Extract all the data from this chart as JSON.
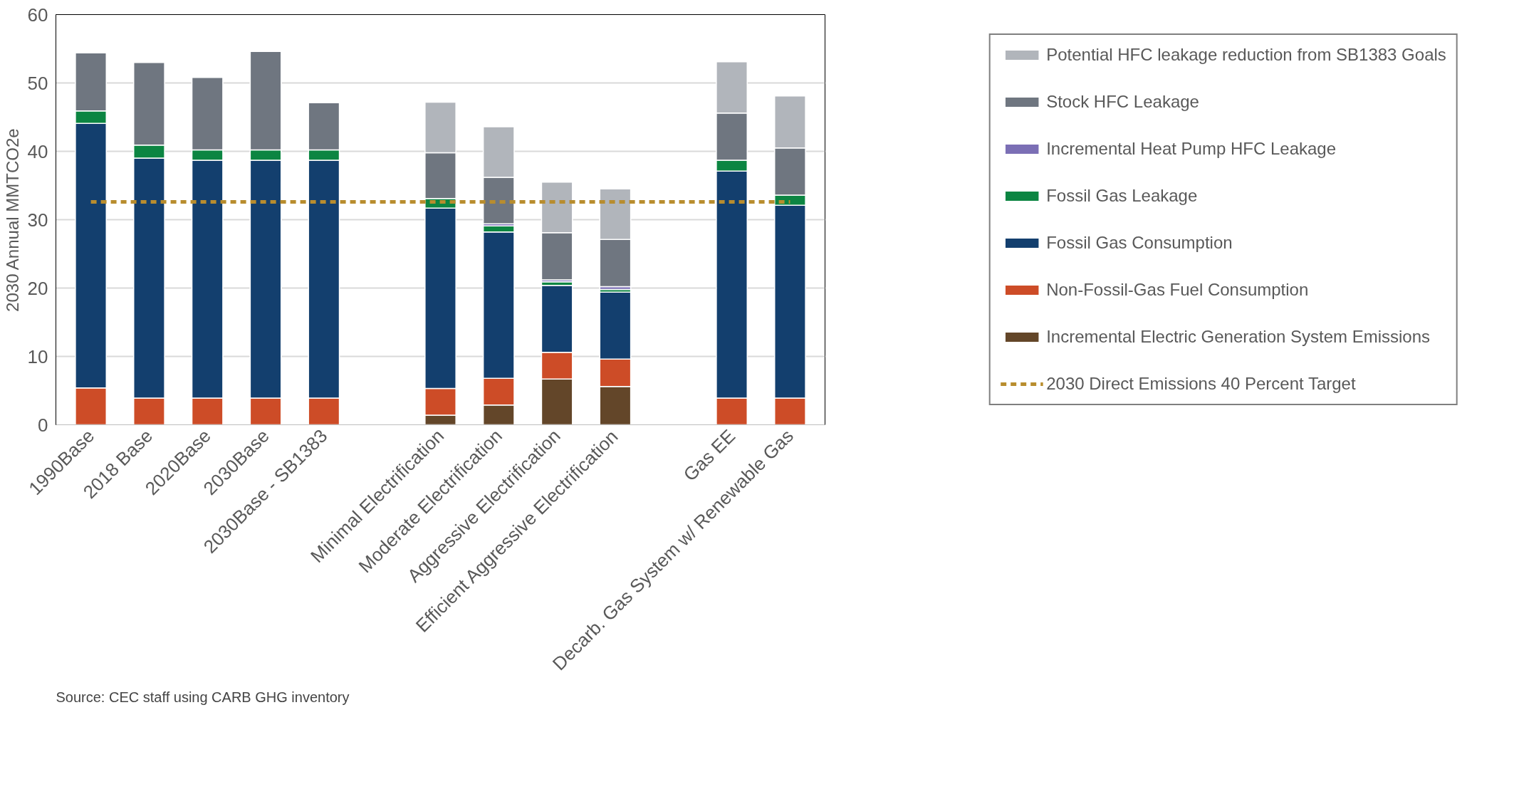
{
  "chart_data": {
    "type": "bar",
    "stacked": true,
    "ylabel": "2030 Annual MMTCO2e",
    "categories": [
      "1990Base",
      "2018 Base",
      "2020Base",
      "2030Base",
      "2030Base - SB1383",
      null,
      "Minimal Electrification",
      "Moderate Electrification",
      "Aggressive Electrification",
      "Efficient Aggressive Electrification",
      null,
      "Gas EE",
      "Decarb. Gas System w/ Renewable Gas"
    ],
    "series": [
      {
        "name": "Incremental Electric Generation System Emissions",
        "color": "#634629",
        "values": [
          null,
          null,
          null,
          null,
          null,
          null,
          1.4,
          2.9,
          6.7,
          5.6,
          null,
          null,
          null
        ]
      },
      {
        "name": "Non-Fossil-Gas Fuel Consumption",
        "color": "#cd4c27",
        "values": [
          5.4,
          3.9,
          3.9,
          3.9,
          3.9,
          null,
          3.9,
          3.9,
          3.9,
          4.0,
          null,
          3.9,
          3.9
        ]
      },
      {
        "name": "Fossil Gas Consumption",
        "color": "#133f6e",
        "values": [
          38.7,
          35.1,
          34.8,
          34.8,
          34.8,
          null,
          26.4,
          21.4,
          9.8,
          9.8,
          null,
          33.2,
          28.2
        ]
      },
      {
        "name": "Fossil Gas Leakage",
        "color": "#0c8542",
        "values": [
          1.8,
          1.9,
          1.5,
          1.5,
          1.5,
          null,
          1.4,
          0.9,
          0.5,
          0.4,
          null,
          1.6,
          1.5
        ]
      },
      {
        "name": "Incremental Heat Pump HFC Leakage",
        "color": "#7b6fb5",
        "values": [
          null,
          null,
          null,
          null,
          null,
          null,
          null,
          0.3,
          0.3,
          0.4,
          null,
          null,
          null
        ]
      },
      {
        "name": "Stock HFC Leakage",
        "color": "#6f7680",
        "values": [
          8.5,
          12.1,
          10.6,
          14.4,
          6.9,
          null,
          6.7,
          6.8,
          6.9,
          6.9,
          null,
          6.9,
          6.9
        ]
      },
      {
        "name": "Potential HFC leakage reduction from SB1383 Goals",
        "color": "#b1b5bb",
        "values": [
          null,
          null,
          null,
          null,
          null,
          null,
          7.4,
          7.4,
          7.4,
          7.4,
          null,
          7.5,
          7.6
        ]
      },
      {
        "name": "2030 Direct Emissions 40 Percent Target",
        "type": "line",
        "line_style": "dashed",
        "marker": "none",
        "color": "#b88d2e",
        "values": [
          32.6,
          32.6,
          32.6,
          32.6,
          32.6,
          32.6,
          32.6,
          32.6,
          32.6,
          32.6,
          32.6,
          32.6,
          32.6
        ]
      }
    ],
    "ylim": [
      0,
      60
    ],
    "yticks": [
      0,
      10,
      20,
      30,
      40,
      50,
      60
    ],
    "grid": "y",
    "legend": "right",
    "annotations": [
      "Source: CEC staff using CARB GHG inventory"
    ]
  }
}
